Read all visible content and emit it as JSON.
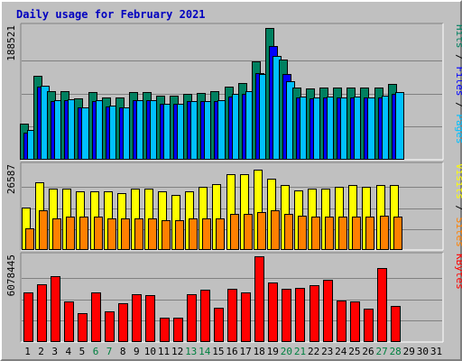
{
  "chart_data": {
    "type": "bar",
    "title": "Daily usage for February 2021",
    "categories": [
      "1",
      "2",
      "3",
      "4",
      "5",
      "6",
      "7",
      "8",
      "9",
      "10",
      "11",
      "12",
      "13",
      "14",
      "15",
      "16",
      "17",
      "18",
      "19",
      "20",
      "21",
      "22",
      "23",
      "24",
      "25",
      "26",
      "27",
      "28",
      "29",
      "30",
      "31"
    ],
    "weekend_days": [
      "6",
      "7",
      "13",
      "14",
      "20",
      "21",
      "27",
      "28"
    ],
    "panels": [
      {
        "max_label": "188521",
        "ymax": 188521,
        "axis_label_parts": [
          {
            "text": "Pages",
            "color": "#00c0ff"
          },
          {
            "text": " / ",
            "color": "#000000"
          },
          {
            "text": "Files",
            "color": "#0000ff"
          },
          {
            "text": " / ",
            "color": "#000000"
          },
          {
            "text": "Hits",
            "color": "#008060"
          }
        ],
        "series": [
          {
            "name": "Hits",
            "color": "#008060",
            "values": [
              51000,
              119000,
              98000,
              98000,
              87000,
              96000,
              89000,
              89000,
              96000,
              96000,
              91000,
              91000,
              94000,
              95000,
              97000,
              104000,
              109000,
              140000,
              187000,
              142000,
              103000,
              101000,
              103000,
              103000,
              103000,
              102000,
              103000,
              108000,
              0,
              0,
              0
            ]
          },
          {
            "name": "Files",
            "color": "#0000ff",
            "values": [
              38000,
              104000,
              84000,
              85000,
              75000,
              84000,
              76000,
              75000,
              85000,
              85000,
              79000,
              80000,
              83000,
              83000,
              84000,
              90000,
              93000,
              123000,
              162000,
              122000,
              89000,
              87000,
              89000,
              89000,
              89000,
              88000,
              89000,
              93000,
              0,
              0,
              0
            ]
          },
          {
            "name": "Pages",
            "color": "#00c0ff",
            "values": [
              42000,
              105000,
              85000,
              86000,
              75000,
              85000,
              77000,
              75000,
              85000,
              85000,
              80000,
              80000,
              84000,
              84000,
              85000,
              94000,
              98000,
              122000,
              148000,
              112000,
              90000,
              88000,
              90000,
              89000,
              90000,
              88000,
              91000,
              96000,
              0,
              0,
              0
            ]
          }
        ]
      },
      {
        "max_label": "26587",
        "ymax": 26587,
        "axis_label_parts": [
          {
            "text": "Sites",
            "color": "#ff8000"
          },
          {
            "text": " / ",
            "color": "#000000"
          },
          {
            "text": "Visits",
            "color": "#ffff00"
          }
        ],
        "series": [
          {
            "name": "Visits",
            "color": "#ffff00",
            "values": [
              13500,
              21500,
              19500,
              19500,
              18500,
              18500,
              18500,
              18000,
              19500,
              19500,
              18500,
              17500,
              18500,
              20000,
              21000,
              24000,
              24000,
              25500,
              22500,
              20500,
              19000,
              19500,
              19500,
              20000,
              20500,
              20000,
              20500,
              20500,
              0,
              0,
              0
            ]
          },
          {
            "name": "Sites",
            "color": "#ff8000",
            "values": [
              7000,
              12500,
              10000,
              10500,
              10500,
              10500,
              10000,
              10000,
              10000,
              10000,
              9500,
              9500,
              10000,
              10000,
              10000,
              11500,
              11500,
              12000,
              12500,
              11500,
              11000,
              10500,
              10500,
              10500,
              10500,
              10500,
              11000,
              10500,
              0,
              0,
              0
            ]
          }
        ]
      },
      {
        "max_label": "6078445",
        "ymax": 6078445,
        "axis_label_parts": [
          {
            "text": "KBytes",
            "color": "#ff0000"
          }
        ],
        "series": [
          {
            "name": "KBytes",
            "color": "#ff0000",
            "values": [
              3500000,
              4100000,
              4700000,
              2900000,
              2050000,
              3500000,
              2150000,
              2750000,
              3400000,
              3350000,
              1700000,
              1750000,
              3400000,
              3700000,
              2400000,
              3750000,
              3500000,
              6078445,
              4200000,
              3800000,
              3850000,
              4050000,
              4400000,
              2950000,
              2850000,
              2350000,
              5250000,
              2550000,
              0,
              0,
              0
            ]
          }
        ]
      }
    ]
  }
}
